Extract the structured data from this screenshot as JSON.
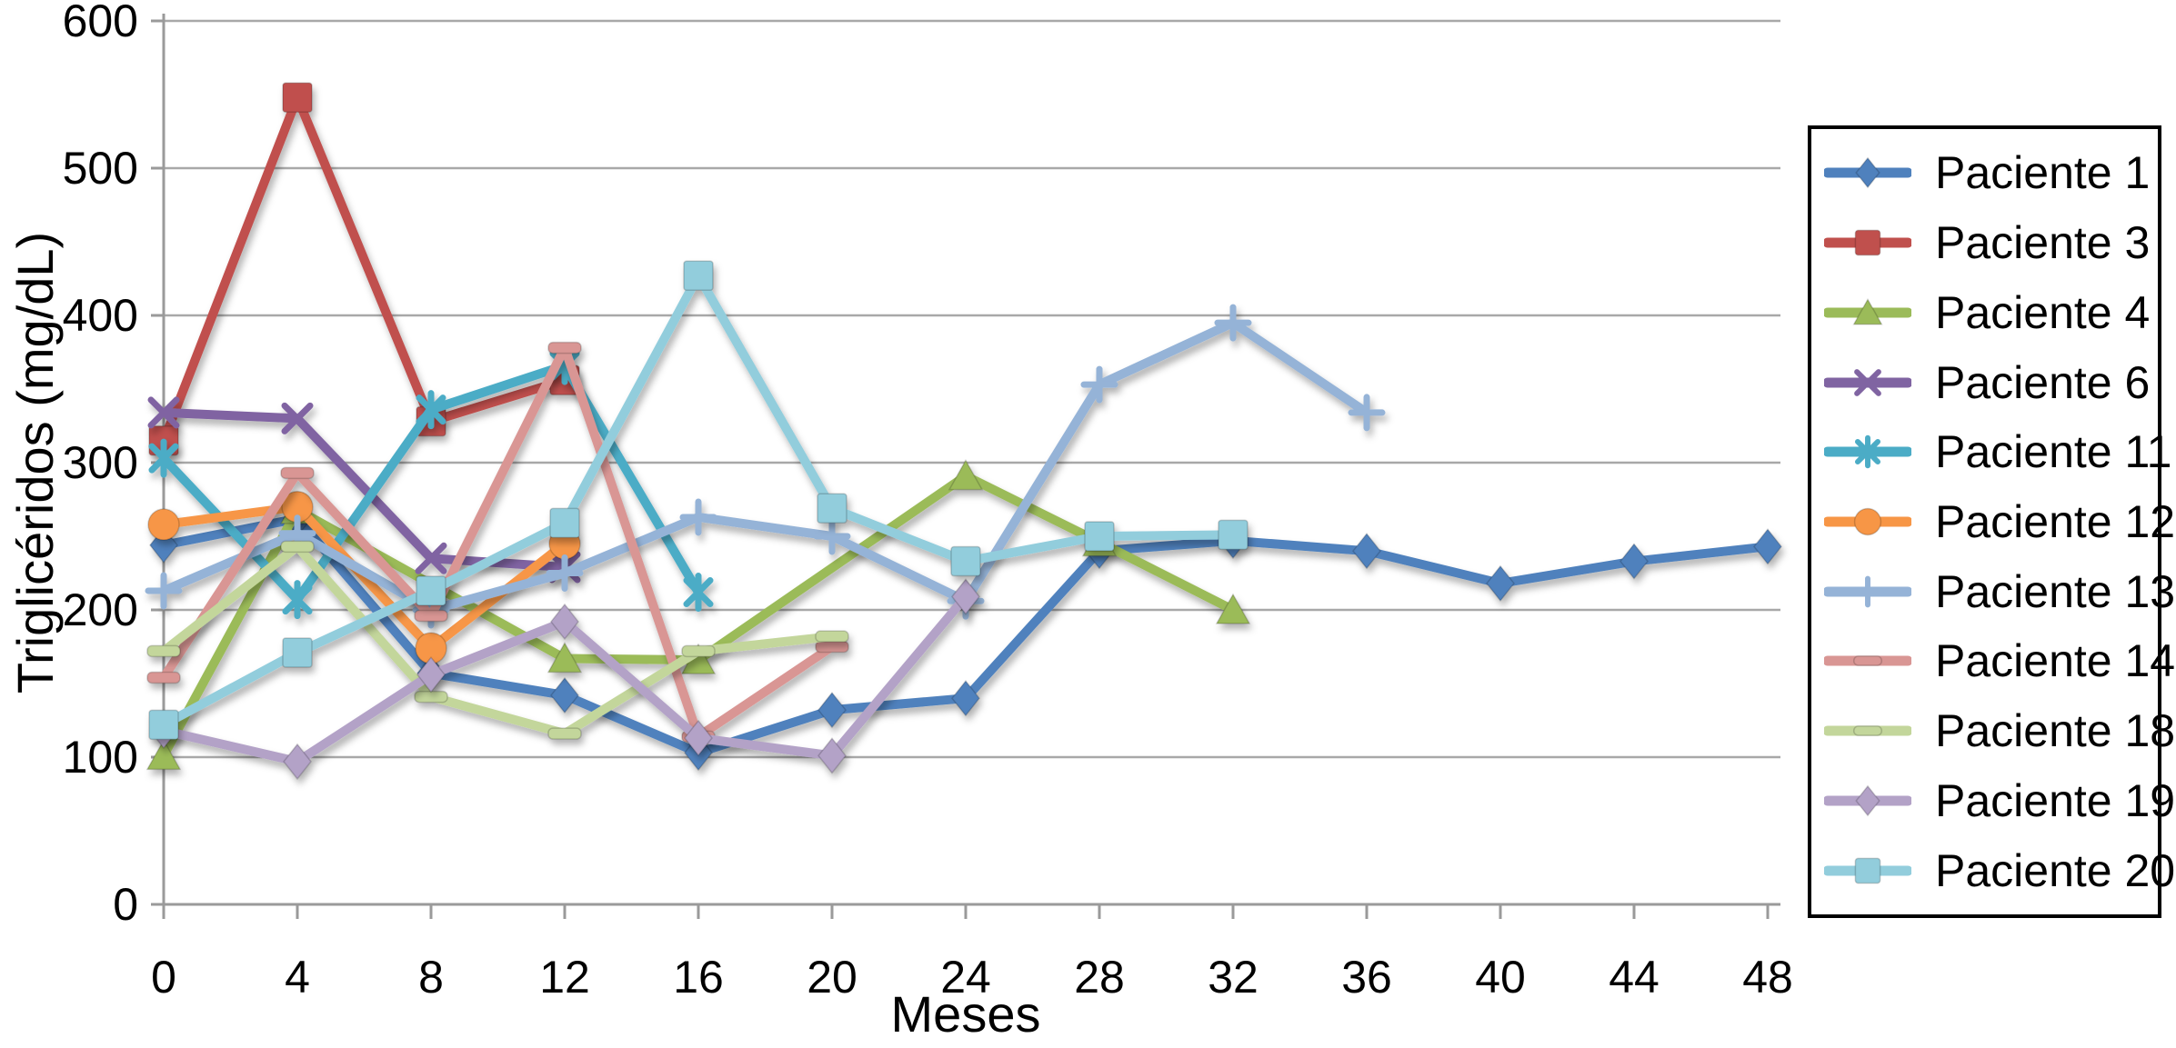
{
  "chart_data": {
    "type": "line",
    "title": "",
    "xlabel": "Meses",
    "ylabel": "Triglicéridos (mg/dL)",
    "xlim": [
      0,
      48
    ],
    "ylim": [
      0,
      600
    ],
    "x_ticks": [
      0,
      4,
      8,
      12,
      16,
      20,
      24,
      28,
      32,
      36,
      40,
      44,
      48
    ],
    "y_ticks": [
      0,
      100,
      200,
      300,
      400,
      500,
      600
    ],
    "grid": "horizontal",
    "legend_position": "right",
    "axis_color": "#9a9a9a",
    "grid_color": "#a8a8a8",
    "series": [
      {
        "name": "Paciente 1",
        "color": "#4F81BD",
        "marker": "diamond",
        "x": [
          0,
          4,
          8,
          12,
          16,
          20,
          24,
          28,
          32,
          36,
          40,
          44,
          48
        ],
        "y": [
          244,
          262,
          157,
          142,
          103,
          132,
          140,
          240,
          247,
          240,
          218,
          233,
          243
        ]
      },
      {
        "name": "Paciente 3",
        "color": "#C0504D",
        "marker": "square",
        "x": [
          0,
          4,
          8,
          12
        ],
        "y": [
          315,
          548,
          328,
          356
        ]
      },
      {
        "name": "Paciente 4",
        "color": "#9BBB59",
        "marker": "triangle",
        "x": [
          0,
          4,
          12,
          16,
          24,
          28,
          32
        ],
        "y": [
          101,
          268,
          167,
          166,
          291,
          246,
          200
        ]
      },
      {
        "name": "Paciente 6",
        "color": "#8064A2",
        "marker": "x",
        "x": [
          0,
          4,
          8,
          12
        ],
        "y": [
          334,
          330,
          235,
          229
        ]
      },
      {
        "name": "Paciente 11",
        "color": "#4BACC6",
        "marker": "star",
        "x": [
          0,
          4,
          8,
          12,
          16
        ],
        "y": [
          303,
          207,
          336,
          366,
          212
        ]
      },
      {
        "name": "Paciente 12",
        "color": "#F79646",
        "marker": "circle",
        "x": [
          0,
          4,
          8,
          12
        ],
        "y": [
          258,
          270,
          174,
          245
        ]
      },
      {
        "name": "Paciente 13",
        "color": "#95B3D7",
        "marker": "plus",
        "x": [
          0,
          4,
          8,
          12,
          16,
          20,
          24,
          28,
          32,
          36
        ],
        "y": [
          213,
          252,
          200,
          225,
          263,
          250,
          206,
          353,
          395,
          334
        ]
      },
      {
        "name": "Paciente 14",
        "color": "#D99694",
        "marker": "dash",
        "x": [
          0,
          4,
          8,
          12,
          16,
          20
        ],
        "y": [
          154,
          293,
          196,
          378,
          114,
          175
        ]
      },
      {
        "name": "Paciente 18",
        "color": "#C3D69B",
        "marker": "dash",
        "x": [
          0,
          4,
          8,
          12,
          16,
          20
        ],
        "y": [
          172,
          243,
          141,
          116,
          172,
          182
        ]
      },
      {
        "name": "Paciente 19",
        "color": "#B3A2C7",
        "marker": "diamond",
        "x": [
          0,
          4,
          8,
          12,
          16,
          20,
          24
        ],
        "y": [
          118,
          97,
          156,
          192,
          113,
          101,
          209
        ]
      },
      {
        "name": "Paciente 20",
        "color": "#92CDDC",
        "marker": "square",
        "x": [
          0,
          4,
          8,
          12,
          16,
          20,
          24,
          28,
          32
        ],
        "y": [
          122,
          171,
          213,
          259,
          427,
          269,
          233,
          250,
          251
        ]
      }
    ]
  }
}
